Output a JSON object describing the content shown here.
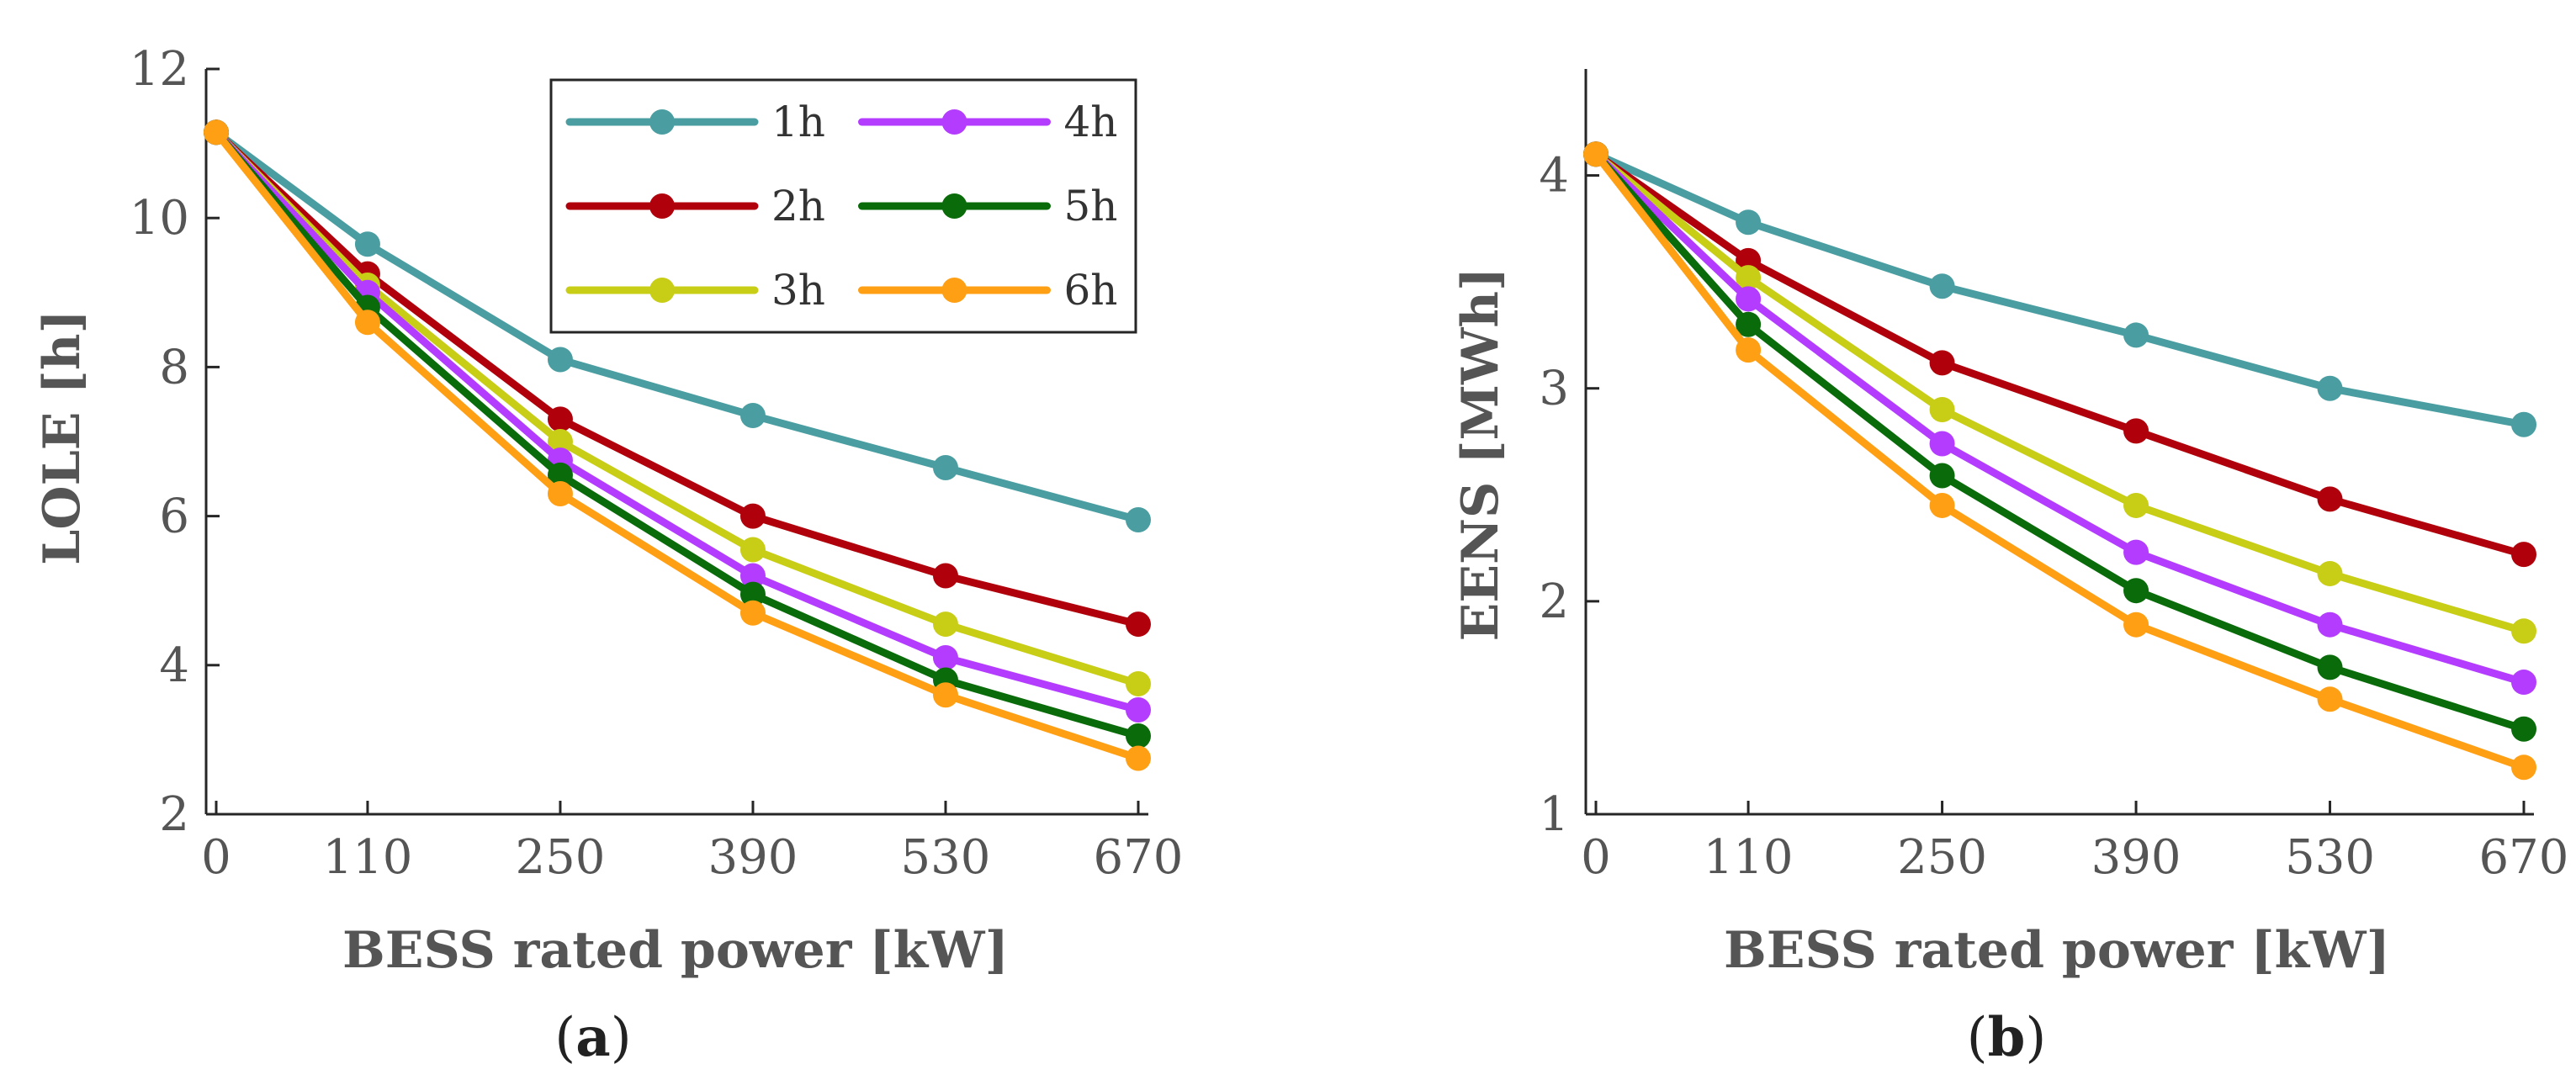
{
  "chart_data": [
    {
      "type": "line",
      "panel_label": "a",
      "x": [
        0,
        110,
        250,
        390,
        530,
        670
      ],
      "xlabel": "BESS rated power [kW]",
      "ylabel": "LOLE [h]",
      "ylim": [
        2,
        12
      ],
      "yticks": [
        2,
        4,
        6,
        8,
        10,
        12
      ],
      "legend_position": "top-right",
      "grid": false,
      "series": [
        {
          "name": "1h",
          "color": "#4a9ea1",
          "values": [
            11.15,
            9.65,
            8.1,
            7.35,
            6.65,
            5.95
          ]
        },
        {
          "name": "2h",
          "color": "#b0000b",
          "values": [
            11.15,
            9.25,
            7.3,
            6.0,
            5.2,
            4.55
          ]
        },
        {
          "name": "3h",
          "color": "#c8cd16",
          "values": [
            11.15,
            9.1,
            7.0,
            5.55,
            4.55,
            3.75
          ]
        },
        {
          "name": "4h",
          "color": "#b33cff",
          "values": [
            11.15,
            9.0,
            6.75,
            5.2,
            4.1,
            3.4
          ]
        },
        {
          "name": "5h",
          "color": "#0a6b0a",
          "values": [
            11.15,
            8.8,
            6.55,
            4.95,
            3.8,
            3.05
          ]
        },
        {
          "name": "6h",
          "color": "#ff9f14",
          "values": [
            11.15,
            8.6,
            6.3,
            4.7,
            3.6,
            2.75
          ]
        }
      ]
    },
    {
      "type": "line",
      "panel_label": "b",
      "x": [
        0,
        110,
        250,
        390,
        530,
        670
      ],
      "xlabel": "BESS rated power [kW]",
      "ylabel": "EENS [MWh]",
      "ylim": [
        1,
        4.5
      ],
      "yticks": [
        1,
        2,
        3,
        4
      ],
      "grid": false,
      "series": [
        {
          "name": "1h",
          "color": "#4a9ea1",
          "values": [
            4.1,
            3.78,
            3.48,
            3.25,
            3.0,
            2.83
          ]
        },
        {
          "name": "2h",
          "color": "#b0000b",
          "values": [
            4.1,
            3.6,
            3.12,
            2.8,
            2.48,
            2.22
          ]
        },
        {
          "name": "3h",
          "color": "#c8cd16",
          "values": [
            4.1,
            3.52,
            2.9,
            2.45,
            2.13,
            1.86
          ]
        },
        {
          "name": "4h",
          "color": "#b33cff",
          "values": [
            4.1,
            3.42,
            2.74,
            2.23,
            1.89,
            1.62
          ]
        },
        {
          "name": "5h",
          "color": "#0a6b0a",
          "values": [
            4.1,
            3.3,
            2.59,
            2.05,
            1.69,
            1.4
          ]
        },
        {
          "name": "6h",
          "color": "#ff9f14",
          "values": [
            4.1,
            3.18,
            2.45,
            1.89,
            1.54,
            1.22
          ]
        }
      ]
    }
  ]
}
